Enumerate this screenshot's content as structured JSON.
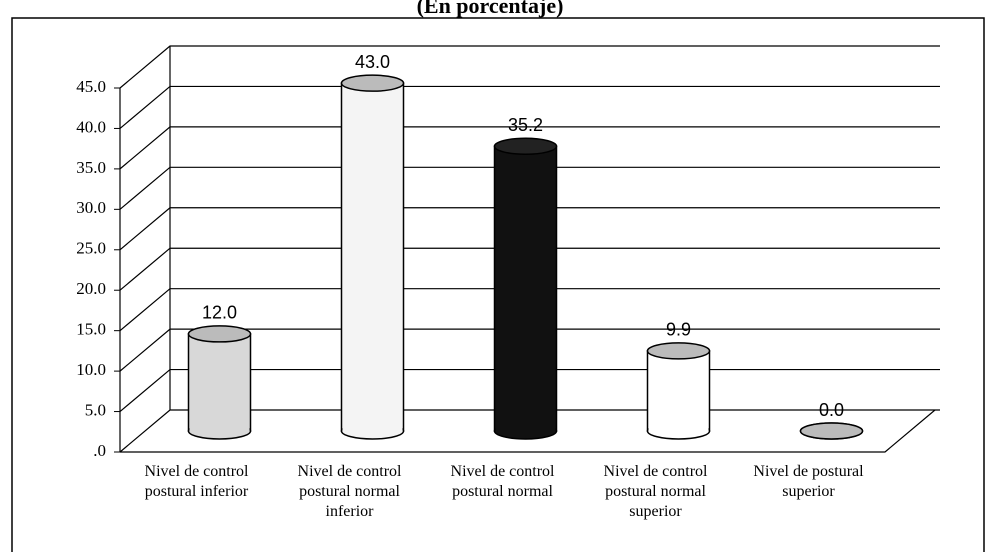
{
  "chart_data": {
    "type": "bar3d",
    "title": "(En porcentaje)",
    "categories": [
      "Nivel de  control postural inferior",
      "Nivel de  control postural normal inferior",
      "Nivel de  control postural normal",
      "Nivel de  control postural normal superior",
      "Nivel de postural superior"
    ],
    "values": [
      12.0,
      43.0,
      35.2,
      9.9,
      0.0
    ],
    "value_labels": [
      "12.0",
      "43.0",
      "35.2",
      "9.9",
      "0.0"
    ],
    "colors": [
      "#d8d8d8",
      "#f4f4f4",
      "#111111",
      "#ffffff",
      "#8a8a8a"
    ],
    "ylim": [
      0,
      45
    ],
    "yticks": [
      {
        "value": 0,
        "label": ".0"
      },
      {
        "value": 5,
        "label": "5.0"
      },
      {
        "value": 10,
        "label": "10.0"
      },
      {
        "value": 15,
        "label": "15.0"
      },
      {
        "value": 20,
        "label": "20.0"
      },
      {
        "value": 25,
        "label": "25.0"
      },
      {
        "value": 30,
        "label": "30.0"
      },
      {
        "value": 35,
        "label": "35.0"
      },
      {
        "value": 40,
        "label": "40.0"
      },
      {
        "value": 45,
        "label": "45.0"
      }
    ],
    "grid": true
  }
}
